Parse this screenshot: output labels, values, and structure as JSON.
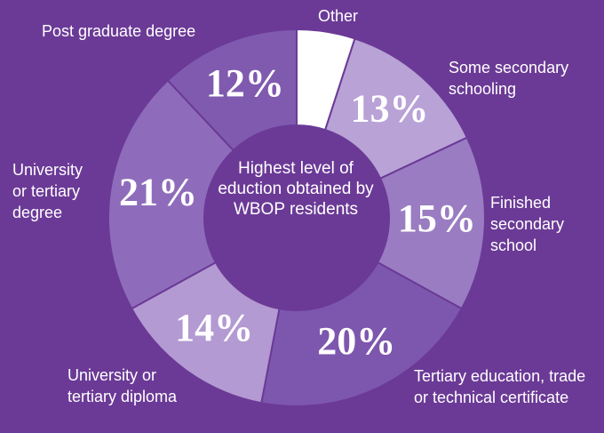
{
  "chart_data": {
    "type": "donut",
    "title": "Highest level of eduction obtained by WBOP residents",
    "categories": [
      "Other",
      "Some secondary schooling",
      "Finished secondary school",
      "Tertiary education, trade or technical certificate",
      "University or tertiary diploma",
      "University or tertiary degree",
      "Post graduate degree"
    ],
    "values": [
      5,
      13,
      15,
      20,
      14,
      21,
      12
    ],
    "value_labels": [
      null,
      "13%",
      "15%",
      "20%",
      "14%",
      "21%",
      "12%"
    ],
    "colors": [
      "#ffffff",
      "#b8a2d6",
      "#9a7cc2",
      "#7d57ae",
      "#b39ad2",
      "#8f6cbb",
      "#7f5aaf"
    ]
  }
}
